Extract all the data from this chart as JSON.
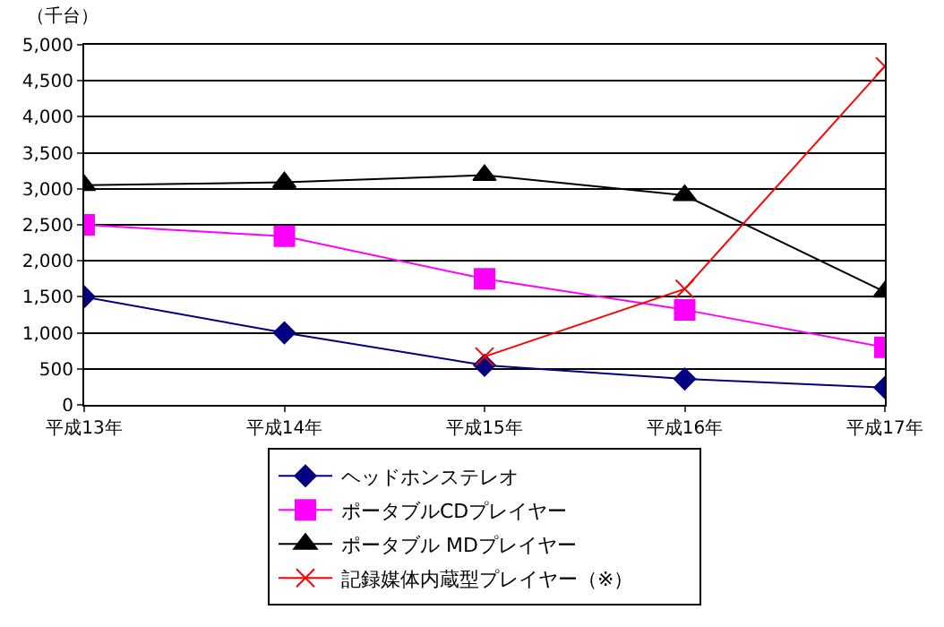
{
  "chart_data": {
    "type": "line",
    "ylabel": "（千台）",
    "categories": [
      "平成13年",
      "平成14年",
      "平成15年",
      "平成16年",
      "平成17年"
    ],
    "series": [
      {
        "name": "ヘッドホンステレオ",
        "color": "#000080",
        "marker": "diamond",
        "values": [
          1500,
          1000,
          550,
          360,
          240
        ]
      },
      {
        "name": "ポータブルCDプレイヤー",
        "color": "#ff00ff",
        "marker": "square",
        "values": [
          2500,
          2340,
          1750,
          1320,
          800
        ]
      },
      {
        "name": "ポータブル MDプレイヤー",
        "color": "#000000",
        "marker": "triangle",
        "values": [
          3050,
          3090,
          3190,
          2910,
          1570
        ]
      },
      {
        "name": "記録媒体内蔵型プレイヤー（※）",
        "color": "#ff0000",
        "marker": "cross",
        "values": [
          null,
          null,
          670,
          1610,
          4700
        ]
      }
    ],
    "ylim": [
      0,
      5000
    ],
    "yticks": [
      {
        "value": 0,
        "label": "0"
      },
      {
        "value": 500,
        "label": "500"
      },
      {
        "value": 1000,
        "label": "1,000"
      },
      {
        "value": 1500,
        "label": "1,500"
      },
      {
        "value": 2000,
        "label": "2,000"
      },
      {
        "value": 2500,
        "label": "2,500"
      },
      {
        "value": 3000,
        "label": "3,000"
      },
      {
        "value": 3500,
        "label": "3,500"
      },
      {
        "value": 4000,
        "label": "4,000"
      },
      {
        "value": 4500,
        "label": "4,500"
      },
      {
        "value": 5000,
        "label": "5,000"
      }
    ],
    "grid": "y",
    "legend": "bottom"
  }
}
